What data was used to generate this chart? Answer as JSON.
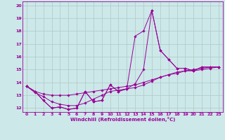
{
  "xlabel": "Windchill (Refroidissement éolien,°C)",
  "background_color": "#cce8e8",
  "grid_color": "#b0c8c8",
  "line_color": "#990099",
  "xlim": [
    -0.5,
    23.5
  ],
  "ylim": [
    11.7,
    20.3
  ],
  "xticks": [
    0,
    1,
    2,
    3,
    4,
    5,
    6,
    7,
    8,
    9,
    10,
    11,
    12,
    13,
    14,
    15,
    16,
    17,
    18,
    19,
    20,
    21,
    22,
    23
  ],
  "yticks": [
    12,
    13,
    14,
    15,
    16,
    17,
    18,
    19,
    20
  ],
  "series": [
    [
      13.7,
      13.3,
      12.6,
      12.0,
      12.1,
      11.9,
      12.0,
      13.3,
      12.5,
      12.6,
      13.8,
      13.3,
      13.5,
      13.9,
      15.0,
      19.6,
      16.5,
      15.8,
      15.1,
      15.1,
      14.9,
      15.2,
      15.2,
      15.2
    ],
    [
      13.7,
      13.3,
      12.6,
      12.0,
      12.1,
      11.9,
      12.0,
      13.3,
      12.5,
      12.6,
      13.8,
      13.3,
      13.5,
      17.6,
      18.0,
      19.6,
      16.5,
      15.8,
      15.1,
      15.1,
      14.9,
      15.2,
      15.2,
      15.2
    ],
    [
      13.7,
      13.3,
      13.1,
      13.0,
      13.0,
      13.0,
      13.1,
      13.2,
      13.3,
      13.4,
      13.5,
      13.6,
      13.7,
      13.8,
      14.0,
      14.2,
      14.4,
      14.6,
      14.7,
      14.9,
      15.0,
      15.1,
      15.2,
      15.2
    ],
    [
      13.7,
      13.2,
      12.9,
      12.5,
      12.3,
      12.2,
      12.2,
      12.4,
      12.7,
      13.0,
      13.3,
      13.4,
      13.5,
      13.6,
      13.8,
      14.1,
      14.4,
      14.6,
      14.8,
      14.9,
      14.9,
      15.0,
      15.1,
      15.2
    ]
  ]
}
